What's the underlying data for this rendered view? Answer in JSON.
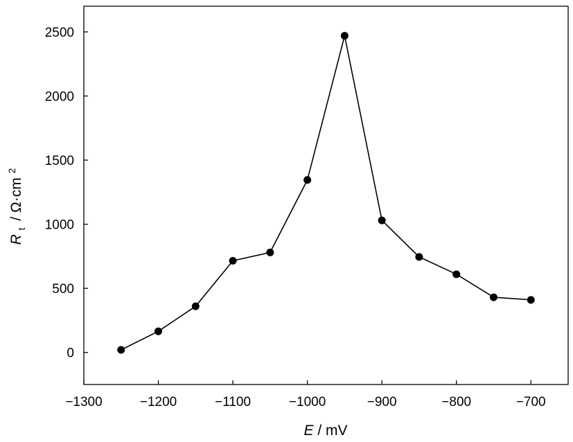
{
  "chart_data": {
    "type": "line",
    "title": "",
    "xlabel": {
      "symbol": "E",
      "unit": "/ mV"
    },
    "ylabel": {
      "symbol": "R",
      "subscript": "t",
      "unit": "/ Ω·cm",
      "superscript": "2"
    },
    "xlim": [
      -1300,
      -650
    ],
    "ylim": [
      -250,
      2700
    ],
    "xticks": [
      -1300,
      -1200,
      -1100,
      -1000,
      -900,
      -800,
      -700
    ],
    "xtick_labels": [
      "−1300",
      "−1200",
      "−1100",
      "−1000",
      "−900",
      "−800",
      "−700"
    ],
    "yticks": [
      0,
      500,
      1000,
      1500,
      2000,
      2500
    ],
    "ytick_labels": [
      "0",
      "500",
      "1000",
      "1500",
      "2000",
      "2500"
    ],
    "grid": false,
    "legend": "none",
    "marker": "filled-circle",
    "color": "#000000",
    "series": [
      {
        "x": [
          -1250,
          -1200,
          -1150,
          -1100,
          -1050,
          -1000,
          -950,
          -900,
          -850,
          -800,
          -750,
          -700
        ],
        "y": [
          20,
          165,
          360,
          715,
          780,
          1345,
          2470,
          1030,
          745,
          610,
          430,
          410
        ]
      }
    ]
  }
}
